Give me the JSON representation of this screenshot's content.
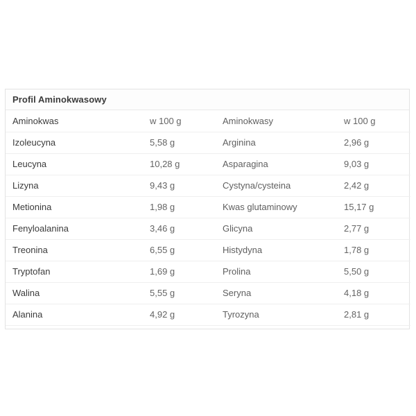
{
  "card": {
    "title": "Profil Aminokwasowy",
    "columns": [
      "Aminokwas",
      "w 100 g",
      "Aminokwasy",
      "w 100 g"
    ],
    "rows": [
      [
        "Izoleucyna",
        "5,58 g",
        "Arginina",
        "2,96 g"
      ],
      [
        "Leucyna",
        "10,28 g",
        "Asparagina",
        "9,03 g"
      ],
      [
        "Lizyna",
        "9,43 g",
        "Cystyna/cysteina",
        "2,42 g"
      ],
      [
        "Metionina",
        "1,98 g",
        "Kwas glutaminowy",
        "15,17 g"
      ],
      [
        "Fenyloalanina",
        "3,46 g",
        "Glicyna",
        "2,77 g"
      ],
      [
        "Treonina",
        "6,55 g",
        "Histydyna",
        "1,78 g"
      ],
      [
        "Tryptofan",
        "1,69 g",
        "Prolina",
        "5,50 g"
      ],
      [
        "Walina",
        "5,55 g",
        "Seryna",
        "4,18 g"
      ],
      [
        "Alanina",
        "4,92 g",
        "Tyrozyna",
        "2,81 g"
      ]
    ],
    "colors": {
      "card_border": "#e3e3e3",
      "header_separator": "#e9e9e9",
      "row_separator": "#efefef",
      "bold_text": "#3b3b3b",
      "name_text": "#5f5f5f",
      "value_text": "#646464",
      "background": "#ffffff"
    }
  }
}
